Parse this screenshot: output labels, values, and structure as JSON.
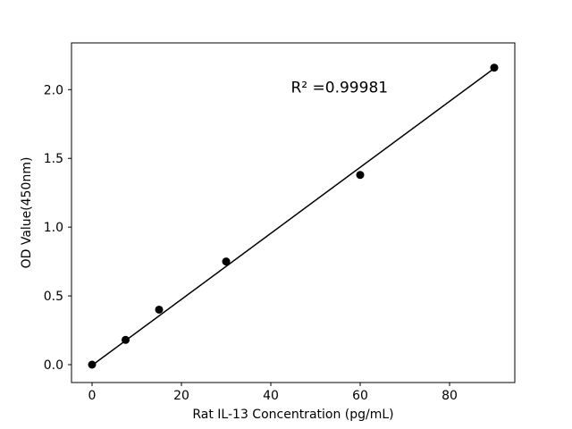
{
  "chart_data": {
    "type": "scatter",
    "title": "",
    "xlabel": "Rat IL-13 Concentration (pg/mL)",
    "ylabel": "OD Value(450nm)",
    "annotation": "R² =0.99981",
    "annotation_xy": [
      44.5,
      1.98
    ],
    "x": [
      0,
      7.5,
      15,
      30,
      60,
      90
    ],
    "y": [
      0.0,
      0.18,
      0.4,
      0.75,
      1.38,
      2.16
    ],
    "fit_line": {
      "x1": 0,
      "y1": -0.005,
      "x2": 90,
      "y2": 2.155
    },
    "xlim": [
      -4.6,
      94.6
    ],
    "ylim": [
      -0.13,
      2.34
    ],
    "xticks": [
      0,
      20,
      40,
      60,
      80
    ],
    "yticks": [
      0.0,
      0.5,
      1.0,
      1.5,
      2.0
    ],
    "grid": false,
    "legend": "none",
    "marker_color": "#000000",
    "line_color": "#000000",
    "axis_color": "#000000",
    "background": "#ffffff"
  }
}
